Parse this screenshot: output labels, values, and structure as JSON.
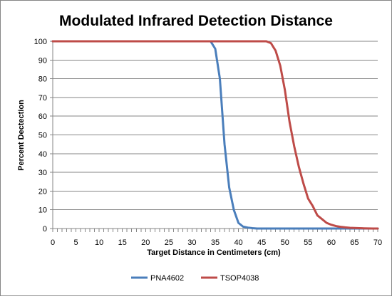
{
  "chart_data": {
    "type": "line",
    "title": "Modulated Infrared Detection Distance",
    "xlabel": "Target Distance in Centimeters (cm)",
    "ylabel": "Percent Dectection",
    "xlim": [
      0,
      70
    ],
    "ylim": [
      0,
      100
    ],
    "xticks": [
      0,
      5,
      10,
      15,
      20,
      25,
      30,
      35,
      40,
      45,
      50,
      55,
      60,
      65,
      70
    ],
    "yticks": [
      0,
      10,
      20,
      30,
      40,
      50,
      60,
      70,
      80,
      90,
      100
    ],
    "grid": "horizontal",
    "legend": "bottom",
    "series": [
      {
        "name": "PNA4602",
        "color": "#4a7ebb",
        "x": [
          0,
          5,
          10,
          15,
          20,
          25,
          30,
          34,
          35,
          36,
          37,
          38,
          39,
          40,
          41,
          42,
          43,
          44,
          45,
          50,
          55,
          60,
          65,
          70
        ],
        "y": [
          100,
          100,
          100,
          100,
          100,
          100,
          100,
          100,
          96,
          80,
          45,
          22,
          10,
          3,
          1,
          0.5,
          0.2,
          0,
          0,
          0,
          0,
          0,
          0,
          0
        ]
      },
      {
        "name": "TSOP4038",
        "color": "#be4b48",
        "x": [
          0,
          5,
          10,
          15,
          20,
          25,
          30,
          35,
          40,
          45,
          46,
          47,
          48,
          49,
          50,
          51,
          52,
          53,
          54,
          55,
          56,
          57,
          58,
          59,
          60,
          61,
          62,
          63,
          64,
          65,
          66,
          67,
          68,
          69,
          70
        ],
        "y": [
          100,
          100,
          100,
          100,
          100,
          100,
          100,
          100,
          100,
          100,
          100,
          99,
          95,
          87,
          74,
          57,
          44,
          33,
          24,
          16,
          12,
          7,
          5,
          3,
          2,
          1.3,
          0.9,
          0.6,
          0.4,
          0.3,
          0.2,
          0.1,
          0.05,
          0,
          0
        ]
      }
    ]
  }
}
